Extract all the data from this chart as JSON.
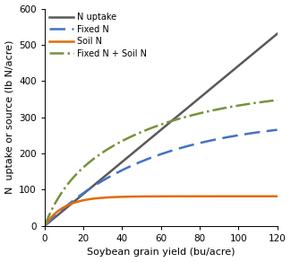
{
  "title": "",
  "xlabel": "Soybean grain yield (bu/acre)",
  "ylabel": "N  uptake or source (lb N/acre)",
  "xlim": [
    0,
    120
  ],
  "ylim": [
    0,
    600
  ],
  "xticks": [
    0,
    20,
    40,
    60,
    80,
    100,
    120
  ],
  "yticks": [
    0,
    100,
    200,
    300,
    400,
    500,
    600
  ],
  "n_uptake_color": "#595959",
  "fixed_n_color": "#4472c4",
  "soil_n_color": "#e36c09",
  "fixed_soil_n_color": "#76923c",
  "legend_labels": [
    "N uptake",
    "Fixed N",
    "Soil N",
    "Fixed N + Soil N"
  ],
  "x_max": 120,
  "n_uptake_slope": 4.42,
  "fixed_n_max": 300,
  "fixed_n_k": 0.018,
  "soil_n_max": 82,
  "soil_n_k": 0.1,
  "background_color": "#ffffff"
}
